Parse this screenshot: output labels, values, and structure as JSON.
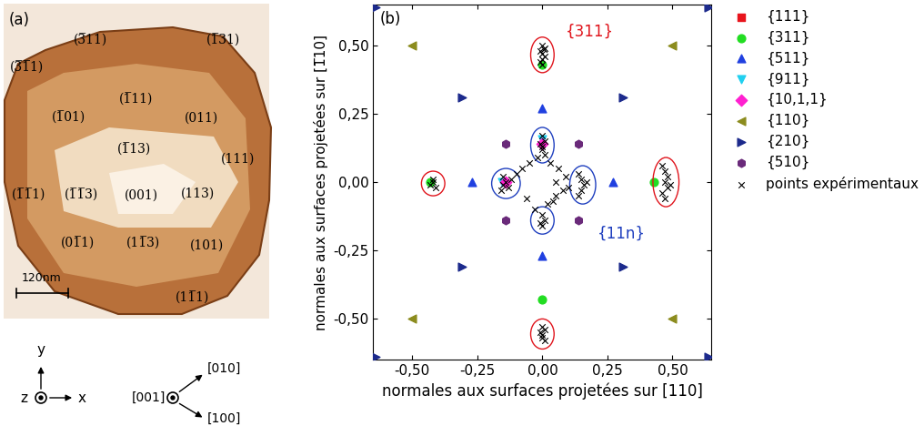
{
  "panel_a": {
    "label": "(a)",
    "facets": [
      "(3̅11)",
      "(3̅1̅1)",
      "(1̅31)",
      "(1̅11)",
      "(1̅01)",
      "(011)",
      "(1̅13)",
      "(111)",
      "(1̅1̅1)",
      "(1̅1̅3)",
      "(001)",
      "(113)",
      "(01̅1)",
      "(11̅3)",
      "(101)",
      "(11̅1)"
    ],
    "scale_bar": "120nm",
    "axes_labels": {
      "y": "y",
      "z": "z",
      "x": "x"
    },
    "directions": {
      "top": "[010]",
      "center": "[001]",
      "bottom": "[100]"
    }
  },
  "chart_data": {
    "type": "scatter",
    "label": "(b)",
    "x_label": "normales aux surfaces projetées sur [110]",
    "y_label": "normales aux surfaces projetées sur [1̅10]",
    "xlim": [
      -0.65,
      0.65
    ],
    "ylim": [
      -0.65,
      0.65
    ],
    "xticks": [
      {
        "value": -0.5,
        "label": "-0,50"
      },
      {
        "value": -0.25,
        "label": "-0,25"
      },
      {
        "value": 0.0,
        "label": "0,00"
      },
      {
        "value": 0.25,
        "label": "0,25"
      },
      {
        "value": 0.5,
        "label": "0,50"
      }
    ],
    "yticks": [
      {
        "value": -0.5,
        "label": "-0,50"
      },
      {
        "value": -0.25,
        "label": "-0,25"
      },
      {
        "value": 0.0,
        "label": "0,00"
      },
      {
        "value": 0.25,
        "label": "0,25"
      },
      {
        "value": 0.5,
        "label": "0,50"
      }
    ],
    "grid": false,
    "legend": "right",
    "series": [
      {
        "name": "{111}",
        "marker": "square",
        "color": "#e8141c",
        "x": [],
        "y": []
      },
      {
        "name": "{311}",
        "marker": "circle",
        "color": "#22dd22",
        "x": [
          0.43,
          -0.43,
          0.0,
          0.0
        ],
        "y": [
          0.0,
          0.0,
          0.43,
          -0.43
        ]
      },
      {
        "name": "{511}",
        "marker": "triangle_up",
        "color": "#2040e0",
        "x": [
          0.0,
          0.0,
          0.27,
          -0.27
        ],
        "y": [
          0.27,
          -0.27,
          0.0,
          0.0
        ]
      },
      {
        "name": "{911}",
        "marker": "triangle_down",
        "color": "#20d0f0",
        "x": [
          -0.155,
          0.0
        ],
        "y": [
          0.0,
          0.155
        ]
      },
      {
        "name": "{10,1,1}",
        "marker": "diamond",
        "color": "#ff20d0",
        "x": [
          -0.14,
          0.0
        ],
        "y": [
          0.0,
          0.14
        ]
      },
      {
        "name": "{110}",
        "marker": "triangle_left",
        "color": "#8c8c1e",
        "x": [
          -0.5,
          0.5,
          -0.5,
          0.5
        ],
        "y": [
          0.5,
          0.5,
          -0.5,
          -0.5
        ]
      },
      {
        "name": "{210}",
        "marker": "triangle_right",
        "color": "#1c2a8c",
        "x": [
          -0.31,
          0.31,
          -0.31,
          0.31,
          -0.64,
          0.64,
          -0.64,
          0.64
        ],
        "y": [
          0.31,
          0.31,
          -0.31,
          -0.31,
          0.64,
          0.64,
          -0.64,
          -0.64
        ]
      },
      {
        "name": "{510}",
        "marker": "hexagon",
        "color": "#6a2a7a",
        "x": [
          -0.14,
          0.14,
          -0.14,
          0.14
        ],
        "y": [
          0.14,
          0.14,
          -0.14,
          -0.14
        ]
      },
      {
        "name": "points expérimentaux",
        "marker": "x",
        "color": "#000000",
        "x": [
          -0.1,
          -0.08,
          -0.05,
          -0.02,
          0.03,
          0.06,
          0.09,
          0.05,
          0.02,
          0.04,
          0.08,
          -0.03,
          0.05,
          0.1,
          -0.06
        ],
        "y": [
          0.03,
          0.05,
          0.07,
          0.09,
          0.07,
          0.05,
          0.02,
          -0.05,
          -0.08,
          -0.07,
          -0.03,
          -0.1,
          0.0,
          -0.02,
          -0.06
        ],
        "clusters": [
          {
            "color": "#e0141c",
            "x": [
              0.0,
              0.01,
              -0.01,
              0.0,
              0.01,
              0.0,
              -0.01,
              0.0,
              0.005
            ],
            "y": [
              0.5,
              0.49,
              0.48,
              0.47,
              0.46,
              0.45,
              0.44,
              0.43,
              0.485
            ]
          },
          {
            "color": "#e0141c",
            "x": [
              0.0,
              0.01,
              -0.01,
              0.0,
              0.0,
              0.01
            ],
            "y": [
              -0.53,
              -0.54,
              -0.55,
              -0.56,
              -0.57,
              -0.58
            ]
          },
          {
            "color": "#e0141c",
            "x": [
              0.46,
              0.47,
              0.48,
              0.47,
              0.48,
              0.46,
              0.49,
              0.47
            ],
            "y": [
              0.06,
              0.04,
              0.02,
              0.0,
              -0.02,
              -0.04,
              -0.01,
              -0.06
            ]
          },
          {
            "color": "#e0141c",
            "x": [
              -0.42,
              -0.43,
              -0.41,
              -0.42
            ],
            "y": [
              0.0,
              -0.01,
              -0.02,
              0.01
            ]
          },
          {
            "color": "#1f3fbf",
            "x": [
              0.0,
              0.01,
              -0.01,
              0.0,
              0.01,
              0.0
            ],
            "y": [
              0.17,
              0.15,
              0.14,
              0.12,
              0.1,
              0.13
            ]
          },
          {
            "color": "#1f3fbf",
            "x": [
              0.0,
              0.01,
              -0.01,
              0.0
            ],
            "y": [
              -0.12,
              -0.14,
              -0.15,
              -0.16
            ]
          },
          {
            "color": "#1f3fbf",
            "x": [
              0.14,
              0.15,
              0.16,
              0.15,
              0.17,
              0.14
            ],
            "y": [
              0.03,
              0.01,
              -0.01,
              -0.03,
              0.0,
              -0.05
            ]
          },
          {
            "color": "#1f3fbf",
            "x": [
              -0.15,
              -0.14,
              -0.13,
              -0.15,
              -0.12,
              -0.16
            ],
            "y": [
              0.02,
              0.0,
              -0.02,
              -0.01,
              0.01,
              -0.03
            ]
          }
        ]
      }
    ],
    "annotations": [
      {
        "text": "{311}",
        "color": "#e0141c",
        "x": 0.09,
        "y": 0.55
      },
      {
        "text": "{11n}",
        "color": "#1f3fbf",
        "x": 0.21,
        "y": -0.19
      }
    ]
  }
}
